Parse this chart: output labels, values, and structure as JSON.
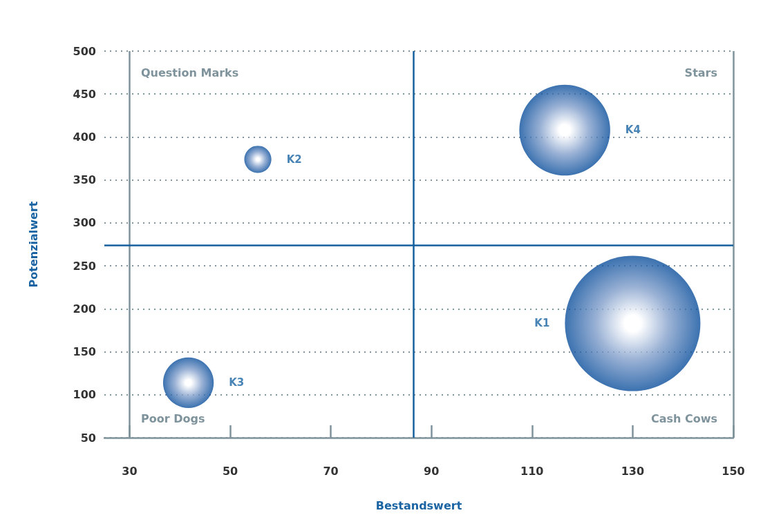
{
  "chart_data": {
    "type": "bubble",
    "xlabel": "Bestandswert",
    "ylabel": "Potenzialwert",
    "xlim": [
      25,
      150
    ],
    "ylim": [
      50,
      500
    ],
    "xticks": [
      30,
      50,
      70,
      90,
      110,
      130,
      150
    ],
    "yticks": [
      50,
      100,
      150,
      200,
      250,
      300,
      350,
      400,
      450,
      500
    ],
    "grid": "y",
    "legend": false,
    "series": [
      {
        "name": "K1",
        "color": "#0b4f9c",
        "x": [
          130
        ],
        "values": [
          183
        ],
        "sizes": [
          1
        ]
      },
      {
        "name": "K2",
        "color": "#0b4f9c",
        "x": [
          55.5
        ],
        "values": [
          374
        ],
        "sizes": [
          0.04
        ]
      },
      {
        "name": "K3",
        "color": "#0b4f9c",
        "x": [
          41.7
        ],
        "values": [
          114
        ],
        "sizes": [
          0.14
        ]
      },
      {
        "name": "K4",
        "color": "#0b4f9c",
        "x": [
          116.5
        ],
        "values": [
          408
        ],
        "sizes": [
          0.45
        ]
      }
    ],
    "ref_lines": [
      {
        "axis": "x",
        "value": 30,
        "color": "#7f939c"
      },
      {
        "axis": "x",
        "value": 150,
        "color": "#7f939c"
      },
      {
        "axis": "x",
        "value": 86.4,
        "color": "#145f9e"
      },
      {
        "axis": "y",
        "value": 274,
        "color": "#145f9e"
      }
    ],
    "annotations": [
      "Question Marks",
      "Stars",
      "Poor Dogs",
      "Cash Cows"
    ]
  }
}
